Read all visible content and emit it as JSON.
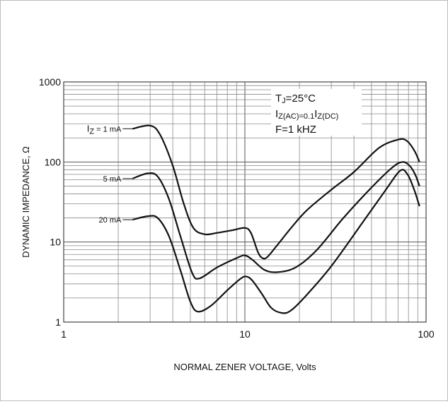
{
  "chart_data": {
    "type": "line",
    "xlabel": "NORMAL ZENER VOLTAGE, Volts",
    "ylabel": "DYNAMIC IMPEDANCE, Ω",
    "xscale": "log",
    "yscale": "log",
    "xlim": [
      1,
      100
    ],
    "ylim": [
      1,
      1000
    ],
    "grid": true,
    "x_ticks": [
      "1",
      "10",
      "100"
    ],
    "y_ticks": [
      "1",
      "10",
      "100",
      "1000"
    ],
    "annotations": {
      "line1": {
        "main": "T",
        "sub": "J",
        "rest": "=25°C"
      },
      "line2": {
        "a": "I",
        "b": "Z(AC)",
        "c": "=0.1",
        "d": "I",
        "e": "Z(DC)"
      },
      "line3": "F=1 kHZ"
    },
    "series": [
      {
        "label_main": "I",
        "label_sub": "Z",
        "label_rest": " = 1 mA",
        "points": [
          [
            2.4,
            260
          ],
          [
            3.0,
            285
          ],
          [
            3.4,
            220
          ],
          [
            4.0,
            90
          ],
          [
            4.6,
            30
          ],
          [
            5.2,
            15
          ],
          [
            6.0,
            12.5
          ],
          [
            7.0,
            13
          ],
          [
            8.5,
            14
          ],
          [
            10.0,
            15
          ],
          [
            10.8,
            13
          ],
          [
            11.8,
            7.5
          ],
          [
            12.5,
            6.3
          ],
          [
            13.3,
            6.5
          ],
          [
            15,
            9
          ],
          [
            18,
            15
          ],
          [
            22,
            25
          ],
          [
            30,
            45
          ],
          [
            40,
            75
          ],
          [
            55,
            150
          ],
          [
            70,
            190
          ],
          [
            78,
            185
          ],
          [
            86,
            140
          ],
          [
            92,
            100
          ]
        ]
      },
      {
        "label_main": "",
        "label_sub": "",
        "label_rest": "5 mA",
        "points": [
          [
            2.4,
            62
          ],
          [
            2.9,
            72
          ],
          [
            3.3,
            66
          ],
          [
            3.8,
            35
          ],
          [
            4.4,
            12
          ],
          [
            5.1,
            4.2
          ],
          [
            5.6,
            3.5
          ],
          [
            7.0,
            4.8
          ],
          [
            9.0,
            6.3
          ],
          [
            10.0,
            6.8
          ],
          [
            11.0,
            6.0
          ],
          [
            12.8,
            4.5
          ],
          [
            15,
            4.2
          ],
          [
            19,
            4.8
          ],
          [
            25,
            8.0
          ],
          [
            35,
            20
          ],
          [
            50,
            48
          ],
          [
            65,
            85
          ],
          [
            74,
            100
          ],
          [
            81,
            90
          ],
          [
            87,
            70
          ],
          [
            92,
            50
          ]
        ]
      },
      {
        "label_main": "",
        "label_sub": "",
        "label_rest": "20 mA",
        "points": [
          [
            2.4,
            19
          ],
          [
            2.9,
            21
          ],
          [
            3.3,
            20
          ],
          [
            3.8,
            12
          ],
          [
            4.4,
            4.5
          ],
          [
            5.0,
            1.8
          ],
          [
            5.5,
            1.35
          ],
          [
            6.5,
            1.6
          ],
          [
            8.0,
            2.5
          ],
          [
            9.5,
            3.5
          ],
          [
            10.2,
            3.7
          ],
          [
            11.0,
            3.3
          ],
          [
            12.5,
            2.2
          ],
          [
            14,
            1.5
          ],
          [
            16,
            1.3
          ],
          [
            18,
            1.4
          ],
          [
            22,
            2.2
          ],
          [
            30,
            5.0
          ],
          [
            45,
            18
          ],
          [
            60,
            45
          ],
          [
            72,
            78
          ],
          [
            79,
            70
          ],
          [
            86,
            45
          ],
          [
            92,
            28
          ]
        ]
      }
    ]
  }
}
